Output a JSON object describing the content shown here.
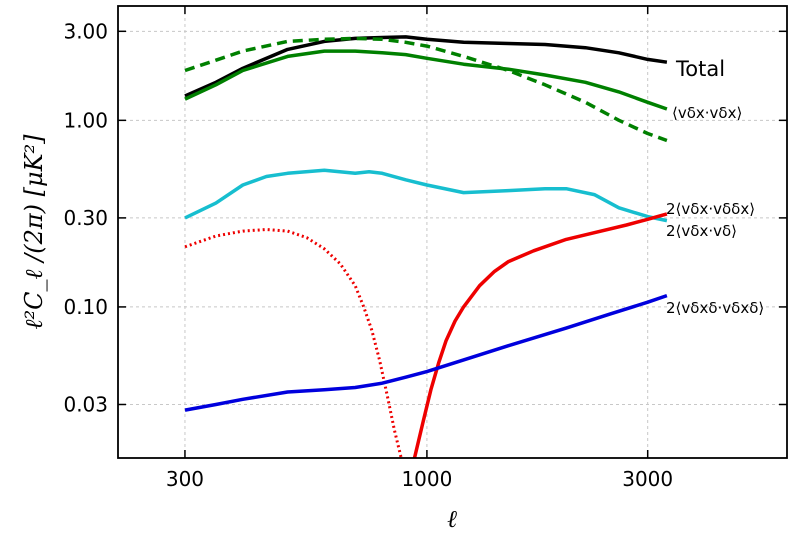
{
  "chart_data": {
    "type": "line",
    "title": "",
    "xlabel": "ℓ",
    "ylabel": "ℓ²C_ℓ /(2π) [μK²]",
    "xscale": "log",
    "yscale": "log",
    "xlim": [
      215,
      6000
    ],
    "ylim": [
      0.0155,
      4.1
    ],
    "xticks": [
      300,
      1000,
      3000
    ],
    "xtick_labels": [
      "300",
      "1000",
      "3000"
    ],
    "yticks": [
      0.03,
      0.1,
      0.3,
      1.0,
      3.0
    ],
    "ytick_labels": [
      "0.03",
      "0.10",
      "0.30",
      "1.00",
      "3.00"
    ],
    "grid": true,
    "series": [
      {
        "name": "Total",
        "color": "#000000",
        "style": "solid",
        "x": [
          300,
          350,
          400,
          500,
          600,
          700,
          800,
          900,
          1000,
          1200,
          1500,
          1800,
          2200,
          2600,
          3000,
          3300
        ],
        "y": [
          1.35,
          1.6,
          1.9,
          2.4,
          2.65,
          2.75,
          2.78,
          2.8,
          2.72,
          2.62,
          2.58,
          2.55,
          2.45,
          2.3,
          2.12,
          2.05
        ]
      },
      {
        "name": "⟨vδx·vδx⟩",
        "color": "#008000",
        "style": "solid",
        "x": [
          300,
          350,
          400,
          500,
          600,
          700,
          800,
          900,
          1000,
          1200,
          1500,
          1800,
          2200,
          2600,
          3000,
          3300
        ],
        "y": [
          1.3,
          1.55,
          1.85,
          2.2,
          2.35,
          2.35,
          2.3,
          2.25,
          2.15,
          2.0,
          1.88,
          1.75,
          1.6,
          1.42,
          1.25,
          1.15
        ]
      },
      {
        "name": "",
        "color": "#008000",
        "style": "dashed",
        "x": [
          300,
          350,
          400,
          500,
          600,
          700,
          800,
          900,
          1000,
          1200,
          1500,
          1800,
          2200,
          2600,
          3000,
          3300
        ],
        "y": [
          1.85,
          2.1,
          2.35,
          2.65,
          2.72,
          2.75,
          2.72,
          2.62,
          2.5,
          2.2,
          1.85,
          1.55,
          1.25,
          1.0,
          0.85,
          0.78
        ]
      },
      {
        "name": "2⟨vδx·vδ⟩",
        "color": "#17becf",
        "style": "solid",
        "x": [
          300,
          350,
          400,
          450,
          500,
          600,
          700,
          750,
          800,
          900,
          1000,
          1200,
          1500,
          1800,
          2000,
          2300,
          2600,
          3000,
          3300
        ],
        "y": [
          0.3,
          0.36,
          0.45,
          0.5,
          0.52,
          0.54,
          0.52,
          0.53,
          0.52,
          0.48,
          0.45,
          0.41,
          0.42,
          0.43,
          0.43,
          0.4,
          0.34,
          0.305,
          0.29
        ]
      },
      {
        "name": "2⟨vδx·vδδx⟩",
        "color": "#ee0000",
        "style": "solid",
        "x": [
          940,
          980,
          1020,
          1060,
          1100,
          1150,
          1200,
          1300,
          1400,
          1500,
          1700,
          2000,
          2300,
          2700,
          3000,
          3300
        ],
        "y": [
          0.0155,
          0.024,
          0.036,
          0.05,
          0.066,
          0.084,
          0.1,
          0.13,
          0.155,
          0.175,
          0.2,
          0.23,
          0.25,
          0.275,
          0.295,
          0.315
        ]
      },
      {
        "name": "",
        "color": "#ee0000",
        "style": "dotted",
        "x": [
          300,
          350,
          400,
          450,
          500,
          550,
          600,
          650,
          700,
          730,
          760,
          790,
          820,
          850,
          880
        ],
        "y": [
          0.21,
          0.24,
          0.255,
          0.26,
          0.255,
          0.235,
          0.205,
          0.17,
          0.13,
          0.1,
          0.075,
          0.052,
          0.034,
          0.022,
          0.0155
        ]
      },
      {
        "name": "2⟨vδxδ·vδxδ⟩",
        "color": "#0000dd",
        "style": "solid",
        "x": [
          300,
          350,
          400,
          500,
          600,
          700,
          800,
          900,
          1000,
          1200,
          1500,
          2000,
          2500,
          3000,
          3300
        ],
        "y": [
          0.028,
          0.03,
          0.032,
          0.035,
          0.036,
          0.037,
          0.039,
          0.042,
          0.045,
          0.052,
          0.062,
          0.077,
          0.092,
          0.106,
          0.115
        ]
      }
    ],
    "labels": [
      {
        "text": "Total",
        "color": "#000000"
      },
      {
        "text": "⟨vδx·vδx⟩",
        "color": "#000000"
      },
      {
        "text": "2⟨vδx·vδδx⟩",
        "color": "#000000"
      },
      {
        "text": "2⟨vδx·vδ⟩",
        "color": "#000000"
      },
      {
        "text": "2⟨vδxδ·vδxδ⟩",
        "color": "#000000"
      }
    ]
  }
}
